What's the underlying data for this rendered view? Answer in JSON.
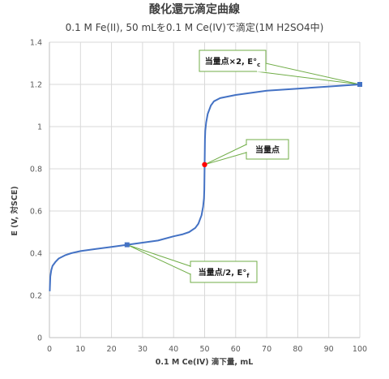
{
  "chart_data": {
    "type": "line",
    "title": "酸化還元滴定曲線",
    "subtitle": "0.1 M Fe(II), 50 mLを0.1 M Ce(IV)で滴定(1M H2SO4中)",
    "xlabel": "0.1 M Ce(IV) 滴下量, mL",
    "ylabel": "E (V, 対SCE)",
    "xlim": [
      0,
      100
    ],
    "ylim": [
      0,
      1.4
    ],
    "xticks": [
      "0",
      "10",
      "20",
      "30",
      "40",
      "50",
      "60",
      "70",
      "80",
      "90",
      "100"
    ],
    "yticks": [
      "0",
      "0.2",
      "0.4",
      "0.6",
      "0.8",
      "1",
      "1.2",
      "1.4"
    ],
    "grid": true,
    "line_color": "#4472c4",
    "series": [
      {
        "x": [
          0.1,
          0.3,
          0.6,
          1,
          2,
          3,
          5,
          7,
          10,
          15,
          20,
          25,
          30,
          35,
          40,
          43,
          45,
          47,
          48,
          49,
          49.5,
          49.8,
          49.9,
          50,
          50.1,
          50.2,
          50.5,
          51,
          52,
          53,
          55,
          60,
          65,
          70,
          75,
          80,
          90,
          100
        ],
        "y": [
          0.22,
          0.29,
          0.32,
          0.34,
          0.36,
          0.375,
          0.39,
          0.4,
          0.41,
          0.42,
          0.43,
          0.44,
          0.45,
          0.46,
          0.48,
          0.49,
          0.5,
          0.52,
          0.54,
          0.58,
          0.62,
          0.66,
          0.7,
          0.82,
          0.94,
          0.98,
          1.02,
          1.06,
          1.1,
          1.12,
          1.135,
          1.15,
          1.16,
          1.17,
          1.175,
          1.18,
          1.19,
          1.2
        ]
      }
    ],
    "markers": [
      {
        "x": 25,
        "y": 0.44,
        "shape": "square",
        "color": "#4472c4"
      },
      {
        "x": 50,
        "y": 0.82,
        "shape": "circle",
        "color": "#ff0000"
      },
      {
        "x": 100,
        "y": 1.2,
        "shape": "square",
        "color": "#4472c4"
      }
    ],
    "annotations": [
      {
        "text": "当量点×2, E°",
        "sub": "c",
        "point": [
          100,
          1.2
        ]
      },
      {
        "text": "当量点",
        "sub": "",
        "point": [
          50,
          0.82
        ]
      },
      {
        "text": "当量点/2, E°",
        "sub": "f",
        "point": [
          25,
          0.44
        ]
      }
    ]
  }
}
